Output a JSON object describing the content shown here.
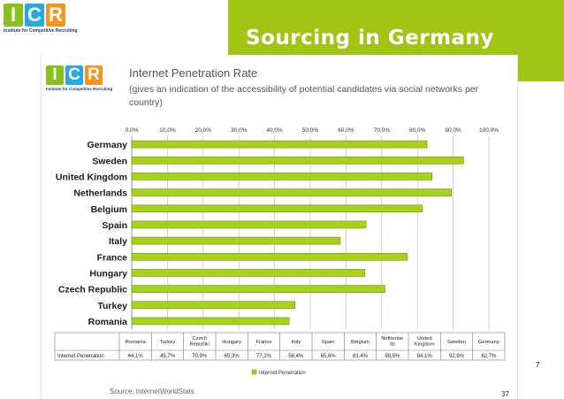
{
  "header": {
    "title": "Sourcing in Germany",
    "logo_letters": [
      "I",
      "C",
      "R"
    ],
    "logo_tagline": "Institute for Competitive Recruiting"
  },
  "colors": {
    "accent_green": "#a0c515",
    "bar_fill": "#a8d11c",
    "bar_stroke": "#6f8f10"
  },
  "chart_data": {
    "type": "bar",
    "orientation": "horizontal",
    "title": "Internet Penetration Rate",
    "subtitle": "(gives an indication of the accessibility of potential candidates via  social networks per country)",
    "categories": [
      "Germany",
      "Sweden",
      "United Kingdom",
      "Netherlands",
      "Belgium",
      "Spain",
      "Italy",
      "France",
      "Hungary",
      "Czech Republic",
      "Turkey",
      "Romania"
    ],
    "series": [
      {
        "name": "Internet Penetration",
        "values": [
          82.7,
          92.9,
          84.1,
          89.5,
          81.4,
          65.6,
          58.4,
          77.2,
          65.3,
          70.9,
          45.7,
          44.1
        ]
      }
    ],
    "xlim": [
      0,
      100
    ],
    "x_ticks": [
      "0,0%",
      "10,0%",
      "20,0%",
      "30,0%",
      "40,0%",
      "50,0%",
      "60,0%",
      "70,0%",
      "80,0%",
      "90,0%",
      "100,0%"
    ],
    "grid": true,
    "legend": "bottom",
    "table": {
      "row_label": "Internet Penetration",
      "columns": [
        "Romania",
        "Turkey",
        "Czech Republic",
        "Hungary",
        "France",
        "Italy",
        "Spain",
        "Belgium",
        "Netherlan ds",
        "United Kingdom",
        "Sweden",
        "Germany"
      ],
      "values": [
        "44,1%",
        "45,7%",
        "70,9%",
        "65,3%",
        "77,2%",
        "58,4%",
        "65,6%",
        "81,4%",
        "89,5%",
        "84,1%",
        "92,9%",
        "82,7%"
      ]
    }
  },
  "footer": {
    "source": "Source: InternetWorldStats",
    "page": "37",
    "slide_number": "7"
  }
}
